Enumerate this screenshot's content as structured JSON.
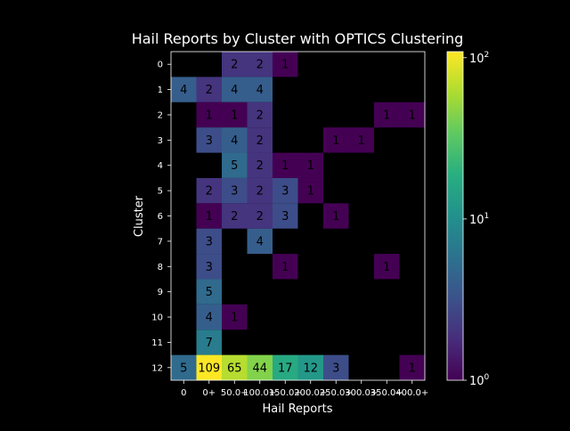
{
  "chart_data": {
    "type": "heatmap",
    "title": "Hail Reports by Cluster with OPTICS Clustering",
    "xlabel": "Hail Reports",
    "ylabel": "Cluster",
    "x_categories": [
      "0",
      "0+",
      "50.0+",
      "100.0+",
      "150.0+",
      "200.0+",
      "250.0+",
      "300.0+",
      "350.0+",
      "400.0+"
    ],
    "y_categories": [
      "0",
      "1",
      "2",
      "3",
      "4",
      "5",
      "6",
      "7",
      "8",
      "9",
      "10",
      "11",
      "12"
    ],
    "values": [
      [
        null,
        null,
        2,
        2,
        1,
        null,
        null,
        null,
        null,
        null
      ],
      [
        4,
        2,
        4,
        4,
        null,
        null,
        null,
        null,
        null,
        null
      ],
      [
        null,
        1,
        1,
        2,
        null,
        null,
        null,
        null,
        1,
        1
      ],
      [
        null,
        3,
        4,
        2,
        null,
        null,
        1,
        1,
        null,
        null
      ],
      [
        null,
        null,
        5,
        2,
        1,
        1,
        null,
        null,
        null,
        null
      ],
      [
        null,
        2,
        3,
        2,
        3,
        1,
        null,
        null,
        null,
        null
      ],
      [
        null,
        1,
        2,
        2,
        3,
        null,
        1,
        null,
        null,
        null
      ],
      [
        null,
        3,
        null,
        4,
        null,
        null,
        null,
        null,
        null,
        null
      ],
      [
        null,
        3,
        null,
        null,
        1,
        null,
        null,
        null,
        1,
        null
      ],
      [
        null,
        5,
        null,
        null,
        null,
        null,
        null,
        null,
        null,
        null
      ],
      [
        null,
        4,
        1,
        null,
        null,
        null,
        null,
        null,
        null,
        null
      ],
      [
        null,
        7,
        null,
        null,
        null,
        null,
        null,
        null,
        null,
        null
      ],
      [
        5,
        109,
        65,
        44,
        17,
        12,
        3,
        null,
        null,
        1
      ]
    ],
    "colorbar": {
      "scale": "log",
      "colormap": "viridis",
      "range": [
        1,
        109
      ],
      "ticks": [
        {
          "value": 1,
          "base": "10",
          "exp": "0"
        },
        {
          "value": 10,
          "base": "10",
          "exp": "1"
        },
        {
          "value": 100,
          "base": "10",
          "exp": "2"
        }
      ]
    },
    "grid": false,
    "legend": "none"
  }
}
